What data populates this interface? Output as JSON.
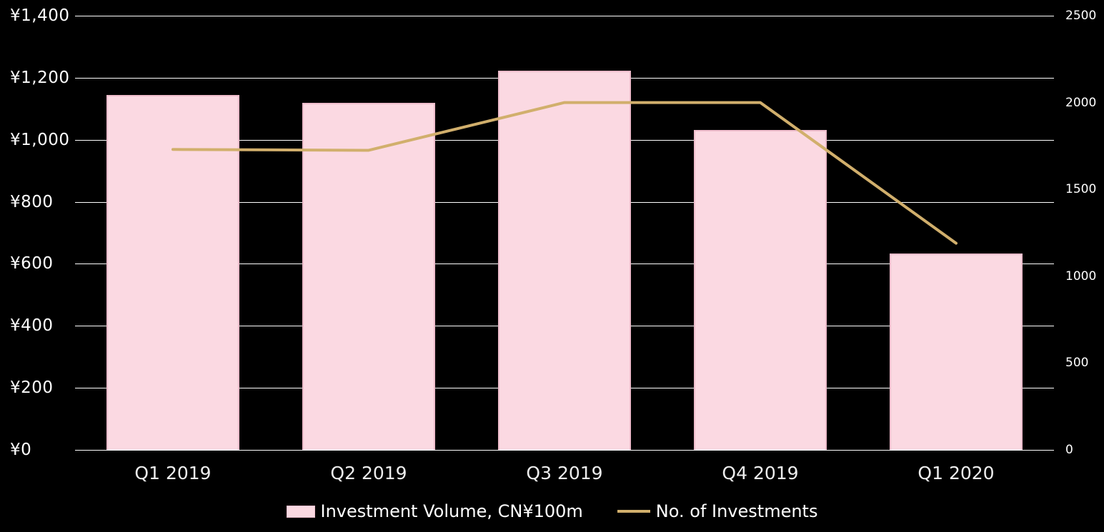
{
  "chart_data": {
    "type": "bar",
    "subtype": "combo-bar-line",
    "title": "",
    "categories": [
      "Q1 2019",
      "Q2 2019",
      "Q3 2019",
      "Q4 2019",
      "Q1 2020"
    ],
    "series": [
      {
        "name": "Investment Volume, CN¥100m",
        "type": "bar",
        "axis": "left",
        "values": [
          1145,
          1120,
          1222,
          1031,
          633
        ],
        "fill_color": "#fbd9e2",
        "border_color": "#eebccb"
      },
      {
        "name": "No. of Investments",
        "type": "line",
        "axis": "right",
        "values": [
          1730,
          1725,
          2000,
          2000,
          1190
        ],
        "line_color": "#d1af6c"
      }
    ],
    "left_axis": {
      "min": 0,
      "max": 1400,
      "step": 200,
      "tick_values": [
        1400,
        1200,
        1000,
        800,
        600,
        400,
        200,
        0
      ],
      "tick_labels": [
        "¥1,400",
        "¥1,200",
        "¥1,000",
        "¥800",
        "¥600",
        "¥400",
        "¥200",
        "¥0"
      ]
    },
    "right_axis": {
      "min": 0,
      "max": 2500,
      "step": 500,
      "tick_values": [
        2500,
        2000,
        1500,
        1000,
        500,
        0
      ],
      "tick_labels": [
        "2500",
        "2000",
        "1500",
        "1000",
        "500",
        "0"
      ]
    },
    "grid": true,
    "legend_position": "bottom",
    "colors": {
      "background": "#000000",
      "gridline": "#ffffff",
      "text": "#ffffff",
      "bar_fill": "#fbd9e2",
      "bar_border": "#eebccb",
      "line": "#d1af6c"
    }
  }
}
